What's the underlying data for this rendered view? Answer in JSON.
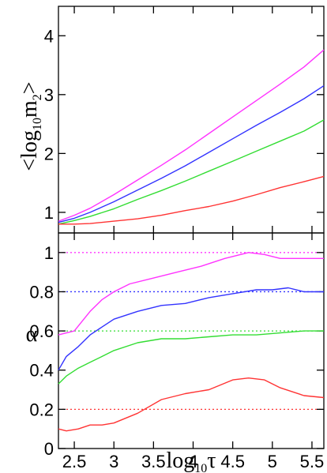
{
  "chart_data": [
    {
      "type": "line",
      "panel": "top",
      "ylabel": "<log10m2>",
      "xlim": [
        2.3,
        5.65
      ],
      "ylim": [
        0.65,
        4.5
      ],
      "yticks": [
        1,
        2,
        3,
        4
      ],
      "ytick_labels": [
        "1",
        "2",
        "3",
        "4"
      ],
      "xticks": [
        2.5,
        3,
        3.5,
        4,
        4.5,
        5,
        5.5
      ],
      "grid": false,
      "series": [
        {
          "color": "#ff33ff",
          "x": [
            2.3,
            2.5,
            2.7,
            3.0,
            3.3,
            3.6,
            3.9,
            4.2,
            4.5,
            4.8,
            5.1,
            5.4,
            5.65
          ],
          "y": [
            0.85,
            0.95,
            1.07,
            1.3,
            1.55,
            1.8,
            2.06,
            2.34,
            2.62,
            2.9,
            3.18,
            3.47,
            3.76
          ]
        },
        {
          "color": "#3333ff",
          "x": [
            2.3,
            2.5,
            2.7,
            3.0,
            3.3,
            3.6,
            3.9,
            4.2,
            4.5,
            4.8,
            5.1,
            5.4,
            5.65
          ],
          "y": [
            0.83,
            0.9,
            1.0,
            1.18,
            1.38,
            1.58,
            1.79,
            2.02,
            2.25,
            2.48,
            2.7,
            2.93,
            3.15
          ]
        },
        {
          "color": "#33dd33",
          "x": [
            2.3,
            2.5,
            2.7,
            3.0,
            3.3,
            3.6,
            3.9,
            4.2,
            4.5,
            4.8,
            5.1,
            5.4,
            5.65
          ],
          "y": [
            0.8,
            0.86,
            0.93,
            1.06,
            1.22,
            1.37,
            1.53,
            1.7,
            1.87,
            2.04,
            2.21,
            2.38,
            2.57
          ]
        },
        {
          "color": "#ff3333",
          "x": [
            2.3,
            2.5,
            2.7,
            3.0,
            3.3,
            3.6,
            3.9,
            4.2,
            4.5,
            4.8,
            5.1,
            5.4,
            5.65
          ],
          "y": [
            0.8,
            0.8,
            0.81,
            0.85,
            0.89,
            0.95,
            1.03,
            1.1,
            1.19,
            1.3,
            1.42,
            1.52,
            1.61
          ]
        }
      ]
    },
    {
      "type": "line",
      "panel": "bottom",
      "ylabel": "α",
      "xlabel": "log10τ",
      "xlim": [
        2.3,
        5.65
      ],
      "ylim": [
        0,
        1.1
      ],
      "yticks": [
        0,
        0.2,
        0.4,
        0.6,
        0.8,
        1
      ],
      "ytick_labels": [
        "0",
        "0.2",
        "0.4",
        "0.6",
        "0.8",
        "1"
      ],
      "xticks": [
        2.5,
        3,
        3.5,
        4,
        4.5,
        5,
        5.5
      ],
      "xtick_labels": [
        "2.5",
        "3",
        "3.5",
        "4",
        "4.5",
        "5",
        "5.5"
      ],
      "grid": false,
      "reference_lines": [
        {
          "y": 1.0,
          "color": "#ff33ff"
        },
        {
          "y": 0.8,
          "color": "#3333ff"
        },
        {
          "y": 0.6,
          "color": "#33dd33"
        },
        {
          "y": 0.2,
          "color": "#ff3333"
        }
      ],
      "series": [
        {
          "color": "#ff33ff",
          "x": [
            2.3,
            2.5,
            2.6,
            2.7,
            2.85,
            3.0,
            3.2,
            3.5,
            3.8,
            4.1,
            4.4,
            4.7,
            4.9,
            5.1,
            5.4,
            5.65
          ],
          "y": [
            0.58,
            0.6,
            0.65,
            0.7,
            0.76,
            0.8,
            0.84,
            0.87,
            0.9,
            0.93,
            0.97,
            1.0,
            0.99,
            0.97,
            0.97,
            0.97
          ]
        },
        {
          "color": "#3333ff",
          "x": [
            2.3,
            2.4,
            2.55,
            2.7,
            2.85,
            3.0,
            3.3,
            3.6,
            3.9,
            4.2,
            4.5,
            4.8,
            5.0,
            5.2,
            5.4,
            5.65
          ],
          "y": [
            0.4,
            0.47,
            0.52,
            0.58,
            0.62,
            0.66,
            0.7,
            0.73,
            0.74,
            0.77,
            0.79,
            0.81,
            0.81,
            0.82,
            0.8,
            0.8
          ]
        },
        {
          "color": "#33dd33",
          "x": [
            2.3,
            2.4,
            2.55,
            2.7,
            2.85,
            3.0,
            3.3,
            3.6,
            3.9,
            4.2,
            4.5,
            4.8,
            5.1,
            5.4,
            5.65
          ],
          "y": [
            0.33,
            0.37,
            0.41,
            0.44,
            0.47,
            0.5,
            0.54,
            0.56,
            0.56,
            0.57,
            0.58,
            0.58,
            0.59,
            0.6,
            0.6
          ]
        },
        {
          "color": "#ff3333",
          "x": [
            2.3,
            2.4,
            2.55,
            2.7,
            2.85,
            3.0,
            3.3,
            3.6,
            3.9,
            4.2,
            4.5,
            4.7,
            4.9,
            5.1,
            5.4,
            5.65
          ],
          "y": [
            0.1,
            0.09,
            0.1,
            0.12,
            0.12,
            0.13,
            0.18,
            0.25,
            0.28,
            0.3,
            0.35,
            0.36,
            0.35,
            0.31,
            0.27,
            0.26
          ]
        }
      ]
    }
  ]
}
